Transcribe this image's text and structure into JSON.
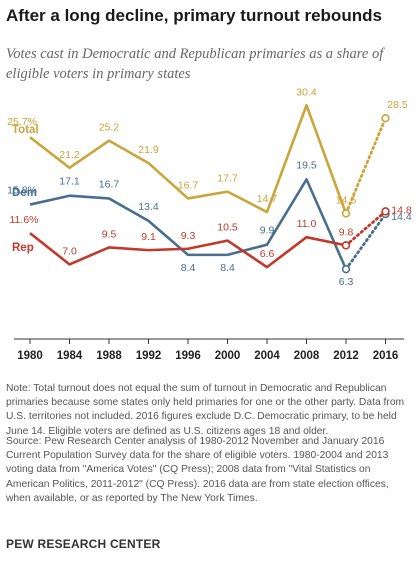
{
  "title": "After a long decline, primary turnout rebounds",
  "subtitle": "Votes cast in Democratic and Republican primaries as a share of eligible voters in primary states",
  "note": "Note: Total turnout does not equal the sum of turnout in Democratic and Republican primaries because some states only held primaries for one or the other party. Data from U.S. territories not included. 2016 figures exclude D.C. Democratic primary, to be held June 14. Eligible voters are defined as U.S. citizens ages 18 and older.",
  "source": "Source: Pew Research Center analysis of 1980-2012 November and January 2016 Current Population Survey data for the share of eligible voters. 1980-2004 and 2013 voting data from \"America Votes\" (CQ Press); 2008 data from \"Vital Statistics on American Politics, 2011-2012\" (CQ Press). 2016 data are from state election offices, when available, or as reported by The New York Times.",
  "org": "PEW RESEARCH CENTER",
  "colors": {
    "total": "#c9a53a",
    "dem": "#4a6f8e",
    "rep": "#c0392b",
    "axis": "#333333"
  },
  "chart_data": {
    "type": "line",
    "x": [
      "1980",
      "1984",
      "1988",
      "1992",
      "1996",
      "2000",
      "2004",
      "2008",
      "2012",
      "2016"
    ],
    "series": [
      {
        "name": "Total",
        "key": "total",
        "values": [
          25.7,
          21.2,
          25.2,
          21.9,
          16.7,
          17.7,
          14.7,
          30.4,
          14.5,
          28.5
        ],
        "labels": [
          "25.7%",
          "21.2",
          "25.2",
          "21.9",
          "16.7",
          "17.7",
          "14.7",
          "30.4",
          "14.5",
          "28.5"
        ]
      },
      {
        "name": "Dem",
        "key": "dem",
        "values": [
          15.8,
          17.1,
          16.7,
          13.4,
          8.4,
          8.4,
          9.9,
          19.5,
          6.3,
          14.4
        ],
        "labels": [
          "15.8%",
          "17.1",
          "16.7",
          "13.4",
          "8.4",
          "8.4",
          "9.9",
          "19.5",
          "6.3",
          "14.4"
        ]
      },
      {
        "name": "Rep",
        "key": "rep",
        "values": [
          11.6,
          7.0,
          9.5,
          9.1,
          9.3,
          10.5,
          6.6,
          11.0,
          9.8,
          14.8
        ],
        "labels": [
          "11.6%",
          "7.0",
          "9.5",
          "9.1",
          "9.3",
          "10.5",
          "6.6",
          "11.0",
          "9.8",
          "14.8"
        ]
      }
    ],
    "dotted_last_segment": true,
    "grid": false,
    "legend": "inline-left"
  }
}
